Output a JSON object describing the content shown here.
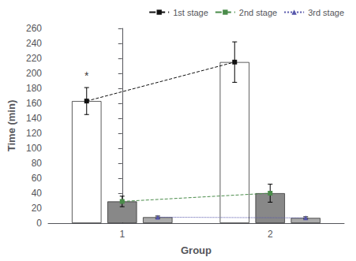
{
  "chart_data": {
    "type": "bar",
    "xlabel": "Group",
    "ylabel": "Time (min)",
    "categories": [
      "1",
      "2"
    ],
    "series": [
      {
        "type": "bar",
        "color": "#ffffff",
        "values": [
          163,
          215
        ],
        "errors": [
          18,
          27
        ]
      },
      {
        "type": "bar",
        "color": "#888888",
        "values": [
          29,
          40
        ],
        "errors": [
          7,
          12
        ]
      },
      {
        "type": "bar",
        "color": "#aaaaaa",
        "values": [
          8,
          7
        ],
        "errors": [
          1.5,
          1.5
        ]
      },
      {
        "type": "line",
        "name": "1st stage",
        "color": "#111111",
        "marker": "square",
        "line_style": "dashed",
        "values": [
          163,
          215
        ]
      },
      {
        "type": "line",
        "name": "2nd stage",
        "color": "#4a8c4a",
        "marker": "square",
        "line_style": "dashed",
        "values": [
          29,
          40
        ]
      },
      {
        "type": "line",
        "name": "3rd stage",
        "color": "#5555aa",
        "marker": "triangle",
        "line_style": "dotted",
        "values": [
          8,
          7
        ]
      }
    ],
    "annotations": [
      {
        "text": "*",
        "category": "1",
        "series": "1st stage",
        "y": 190
      }
    ],
    "ylim": [
      0,
      260
    ],
    "yticks": [
      0,
      20,
      40,
      60,
      80,
      100,
      120,
      140,
      160,
      180,
      200,
      220,
      240,
      260
    ],
    "grid": false,
    "legend": "upper right"
  }
}
